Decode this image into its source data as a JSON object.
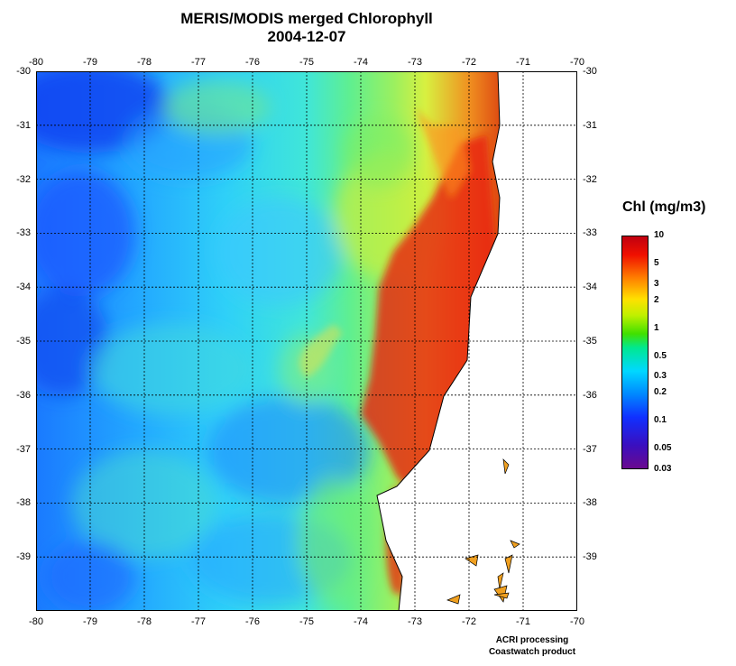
{
  "header": {
    "title": "MERIS/MODIS merged Chlorophyll",
    "date": "2004-12-07"
  },
  "map": {
    "lon_range": [
      -80,
      -70
    ],
    "lat_range": [
      -40,
      -30
    ],
    "lon_ticks": [
      "-80",
      "-79",
      "-78",
      "-77",
      "-76",
      "-75",
      "-74",
      "-73",
      "-72",
      "-71",
      "-70"
    ],
    "lat_ticks": [
      "-30",
      "-31",
      "-32",
      "-33",
      "-34",
      "-35",
      "-36",
      "-37",
      "-38",
      "-39"
    ],
    "grid": true,
    "land_color": "#ffffff",
    "coast_color": "#000000"
  },
  "colorbar": {
    "title": "Chl (mg/m3)",
    "labels": [
      "10",
      "5",
      "3",
      "2",
      "1",
      "0.5",
      "0.3",
      "0.2",
      "0.1",
      "0.05",
      "0.03"
    ],
    "scale": "log",
    "range": [
      0.03,
      10
    ]
  },
  "footer": {
    "line1": "ACRI processing",
    "line2": "Coastwatch product"
  }
}
